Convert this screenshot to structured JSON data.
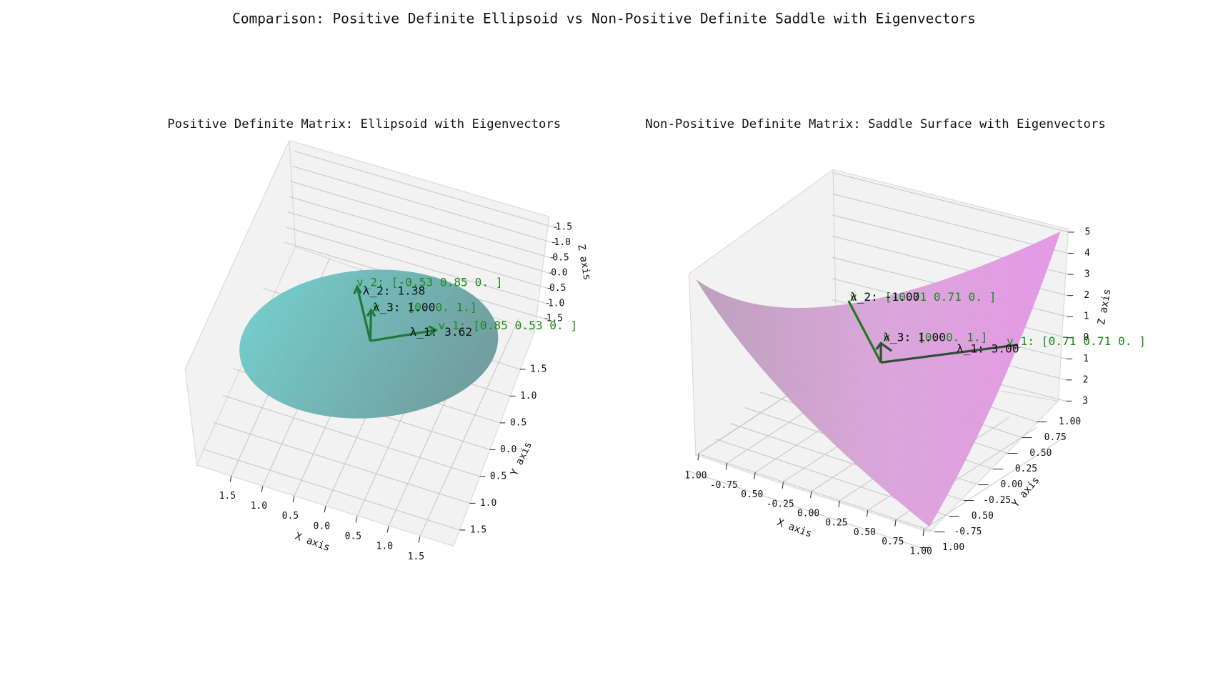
{
  "title": "Comparison: Positive Definite Ellipsoid vs Non-Positive Definite Saddle with Eigenvectors",
  "chart_data": [
    {
      "type": "surface3d",
      "title": "Positive Definite Matrix: Ellipsoid with Eigenvectors",
      "xlabel": "X axis",
      "ylabel": "Y axis",
      "zlabel": "Z axis",
      "color": "#66c2c2",
      "grid": true,
      "xlim": [
        -2,
        2
      ],
      "ylim": [
        -2,
        2
      ],
      "zlim": [
        -2,
        2
      ],
      "xticks": [
        {
          "value": -1.5,
          "label": "1.5"
        },
        {
          "value": -1,
          "label": "1.0"
        },
        {
          "value": -0.5,
          "label": "0.5"
        },
        {
          "value": 0,
          "label": "0.0"
        },
        0.5,
        {
          "value": 1,
          "label": "1.0"
        },
        1.5
      ],
      "yticks": [
        {
          "value": -1.5,
          "label": "1.5"
        },
        {
          "value": -1,
          "label": "1.0"
        },
        {
          "value": -0.5,
          "label": "0.5"
        },
        {
          "value": 0,
          "label": "0.0"
        },
        0.5,
        {
          "value": 1,
          "label": "1.0"
        },
        1.5
      ],
      "zticks": [
        {
          "value": -1.5,
          "label": "1.5"
        },
        {
          "value": -1,
          "label": "1.0"
        },
        {
          "value": -0.5,
          "label": "0.5"
        },
        {
          "value": 0,
          "label": "0.0"
        },
        0.5,
        {
          "value": 1,
          "label": "1.0"
        },
        1.5
      ],
      "annotations": [
        {
          "text": "v_1: [0.85 0.53 0.  ]",
          "color": "#1a8a1a"
        },
        {
          "text": "λ_1: 3.62",
          "color": "#111111"
        },
        {
          "text": "v_2: [-0.53  0.85  0.  ]",
          "color": "#1a8a1a"
        },
        {
          "text": "λ_2: 1.38",
          "color": "#111111"
        },
        {
          "text": "v_3: [0. 0. 1.]",
          "color": "#1a8a1a"
        },
        {
          "text": "λ_3: 1.00",
          "color": "#111111"
        }
      ]
    },
    {
      "type": "surface3d",
      "title": "Non-Positive Definite Matrix: Saddle Surface with Eigenvectors",
      "xlabel": "X axis",
      "ylabel": "Y axis",
      "zlabel": "Z axis",
      "color": "#e08ee0",
      "grid": true,
      "xlim": [
        -1,
        1
      ],
      "ylim": [
        -1,
        1
      ],
      "zlim": [
        -3,
        5
      ],
      "xticks": [
        {
          "value": -1,
          "label": "1.00"
        },
        -0.75,
        {
          "value": -0.5,
          "label": "0.50"
        },
        -0.25,
        {
          "value": 0,
          "label": "0.00"
        },
        0.25,
        {
          "value": 0.5,
          "label": "0.50"
        },
        0.75,
        {
          "value": 1,
          "label": "1.00"
        }
      ],
      "yticks": [
        {
          "value": -1,
          "label": "1.00"
        },
        -0.75,
        {
          "value": -0.5,
          "label": "0.50"
        },
        -0.25,
        {
          "value": 0,
          "label": "0.00"
        },
        0.25,
        {
          "value": 0.5,
          "label": "0.50"
        },
        0.75,
        {
          "value": 1,
          "label": "1.00"
        }
      ],
      "zticks": [
        {
          "value": -3,
          "label": "3"
        },
        {
          "value": -2,
          "label": "2"
        },
        {
          "value": -1,
          "label": "1"
        },
        0,
        1,
        2,
        3,
        4,
        5
      ],
      "annotations": [
        {
          "text": "v_1: [0.71 0.71 0.  ]",
          "color": "#1a8a1a"
        },
        {
          "text": "λ_1: 3.00",
          "color": "#111111"
        },
        {
          "text": "v_2: [-0.71  0.71  0.  ]",
          "color": "#1a8a1a"
        },
        {
          "text": "λ_2: -1.00",
          "color": "#111111"
        },
        {
          "text": "v_3: [0. 0. 1.]",
          "color": "#1a8a1a"
        },
        {
          "text": "λ_3: 1.00",
          "color": "#111111"
        }
      ]
    }
  ]
}
